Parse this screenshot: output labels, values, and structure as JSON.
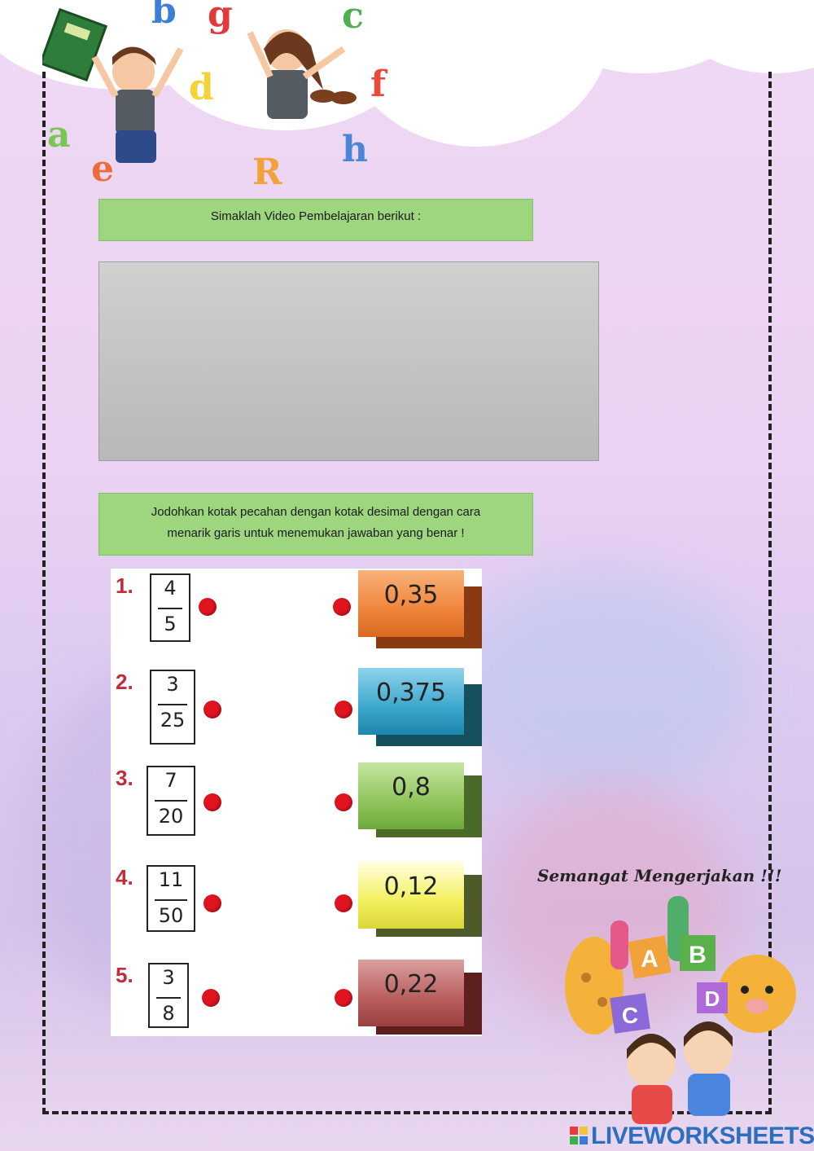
{
  "header": {
    "letters": [
      "b",
      "g",
      "c",
      "d",
      "f",
      "a",
      "e",
      "R",
      "h"
    ]
  },
  "instruction_video": "Simaklah Video Pembelajaran berikut :",
  "instruction_match_line1": "Jodohkan kotak pecahan dengan kotak desimal dengan cara",
  "instruction_match_line2": "menarik garis untuk menemukan jawaban yang benar !",
  "items": [
    {
      "number": "1.",
      "numerator": "4",
      "denominator": "5",
      "decimal": "0,35",
      "color": "#f0843a",
      "shadow": "#8a3a12"
    },
    {
      "number": "2.",
      "numerator": "3",
      "denominator": "25",
      "decimal": "0,375",
      "color": "#3aa6cc",
      "shadow": "#16505f"
    },
    {
      "number": "3.",
      "numerator": "7",
      "denominator": "20",
      "decimal": "0,8",
      "color": "#8fc45a",
      "shadow": "#4a6a28"
    },
    {
      "number": "4.",
      "numerator": "11",
      "denominator": "50",
      "decimal": "0,12",
      "color": "#f2f05a",
      "shadow": "#4f5a2a"
    },
    {
      "number": "5.",
      "numerator": "3",
      "denominator": "8",
      "decimal": "0,22",
      "color": "#b85c5c",
      "shadow": "#5e1f1f"
    }
  ],
  "motto": "Semangat Mengerjakan !!!",
  "illustration_blocks": [
    "A",
    "B",
    "C",
    "D"
  ],
  "brand": "LIVEWORKSHEETS"
}
